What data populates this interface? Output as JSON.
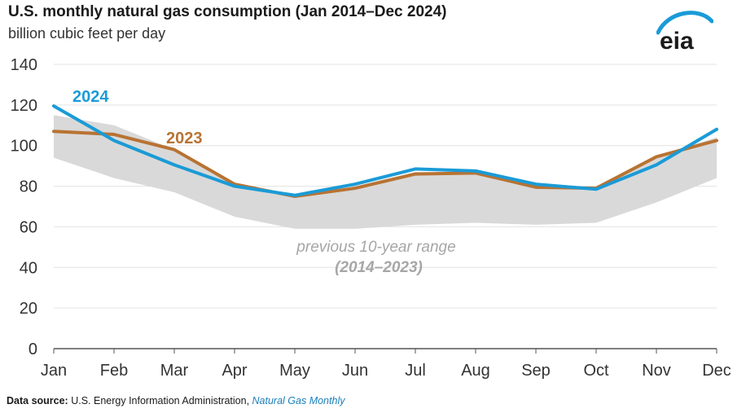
{
  "header": {
    "title": "U.S. monthly natural gas consumption (Jan 2014–Dec 2024)",
    "subtitle": "billion cubic feet per day",
    "logo_text": "eia"
  },
  "footer": {
    "label": "Data source:",
    "source": " U.S. Energy Information Administration, ",
    "publication": "Natural Gas Monthly"
  },
  "colors": {
    "series_2024": "#1a9bd7",
    "series_2023": "#b87333",
    "range_fill": "#d9d9d9",
    "grid": "#e3e3e3",
    "axis": "#555555",
    "range_label": "#a6a6a6",
    "logo_blue": "#1a9bd7"
  },
  "chart_data": {
    "type": "line",
    "categories": [
      "Jan",
      "Feb",
      "Mar",
      "Apr",
      "May",
      "Jun",
      "Jul",
      "Aug",
      "Sep",
      "Oct",
      "Nov",
      "Dec"
    ],
    "ylim": [
      0,
      140
    ],
    "yticks": [
      0,
      20,
      40,
      60,
      80,
      100,
      120,
      140
    ],
    "grid": true,
    "range": {
      "label_line1": "previous 10-year range",
      "label_line2": "(2014–2023)",
      "min": [
        94,
        84,
        77,
        65,
        59,
        59,
        61,
        62,
        61,
        62,
        72,
        84
      ],
      "max": [
        115,
        110,
        98,
        81,
        75,
        80,
        87,
        87,
        80,
        79,
        95,
        104
      ]
    },
    "series": [
      {
        "name": "2023",
        "values": [
          107,
          105.5,
          98,
          81,
          75,
          79,
          86,
          86.5,
          79.5,
          79,
          94.5,
          102.5
        ]
      },
      {
        "name": "2024",
        "values": [
          119.5,
          102.5,
          90.5,
          80,
          75.5,
          81,
          88.5,
          87.5,
          81,
          78.5,
          90.5,
          108
        ]
      }
    ]
  }
}
